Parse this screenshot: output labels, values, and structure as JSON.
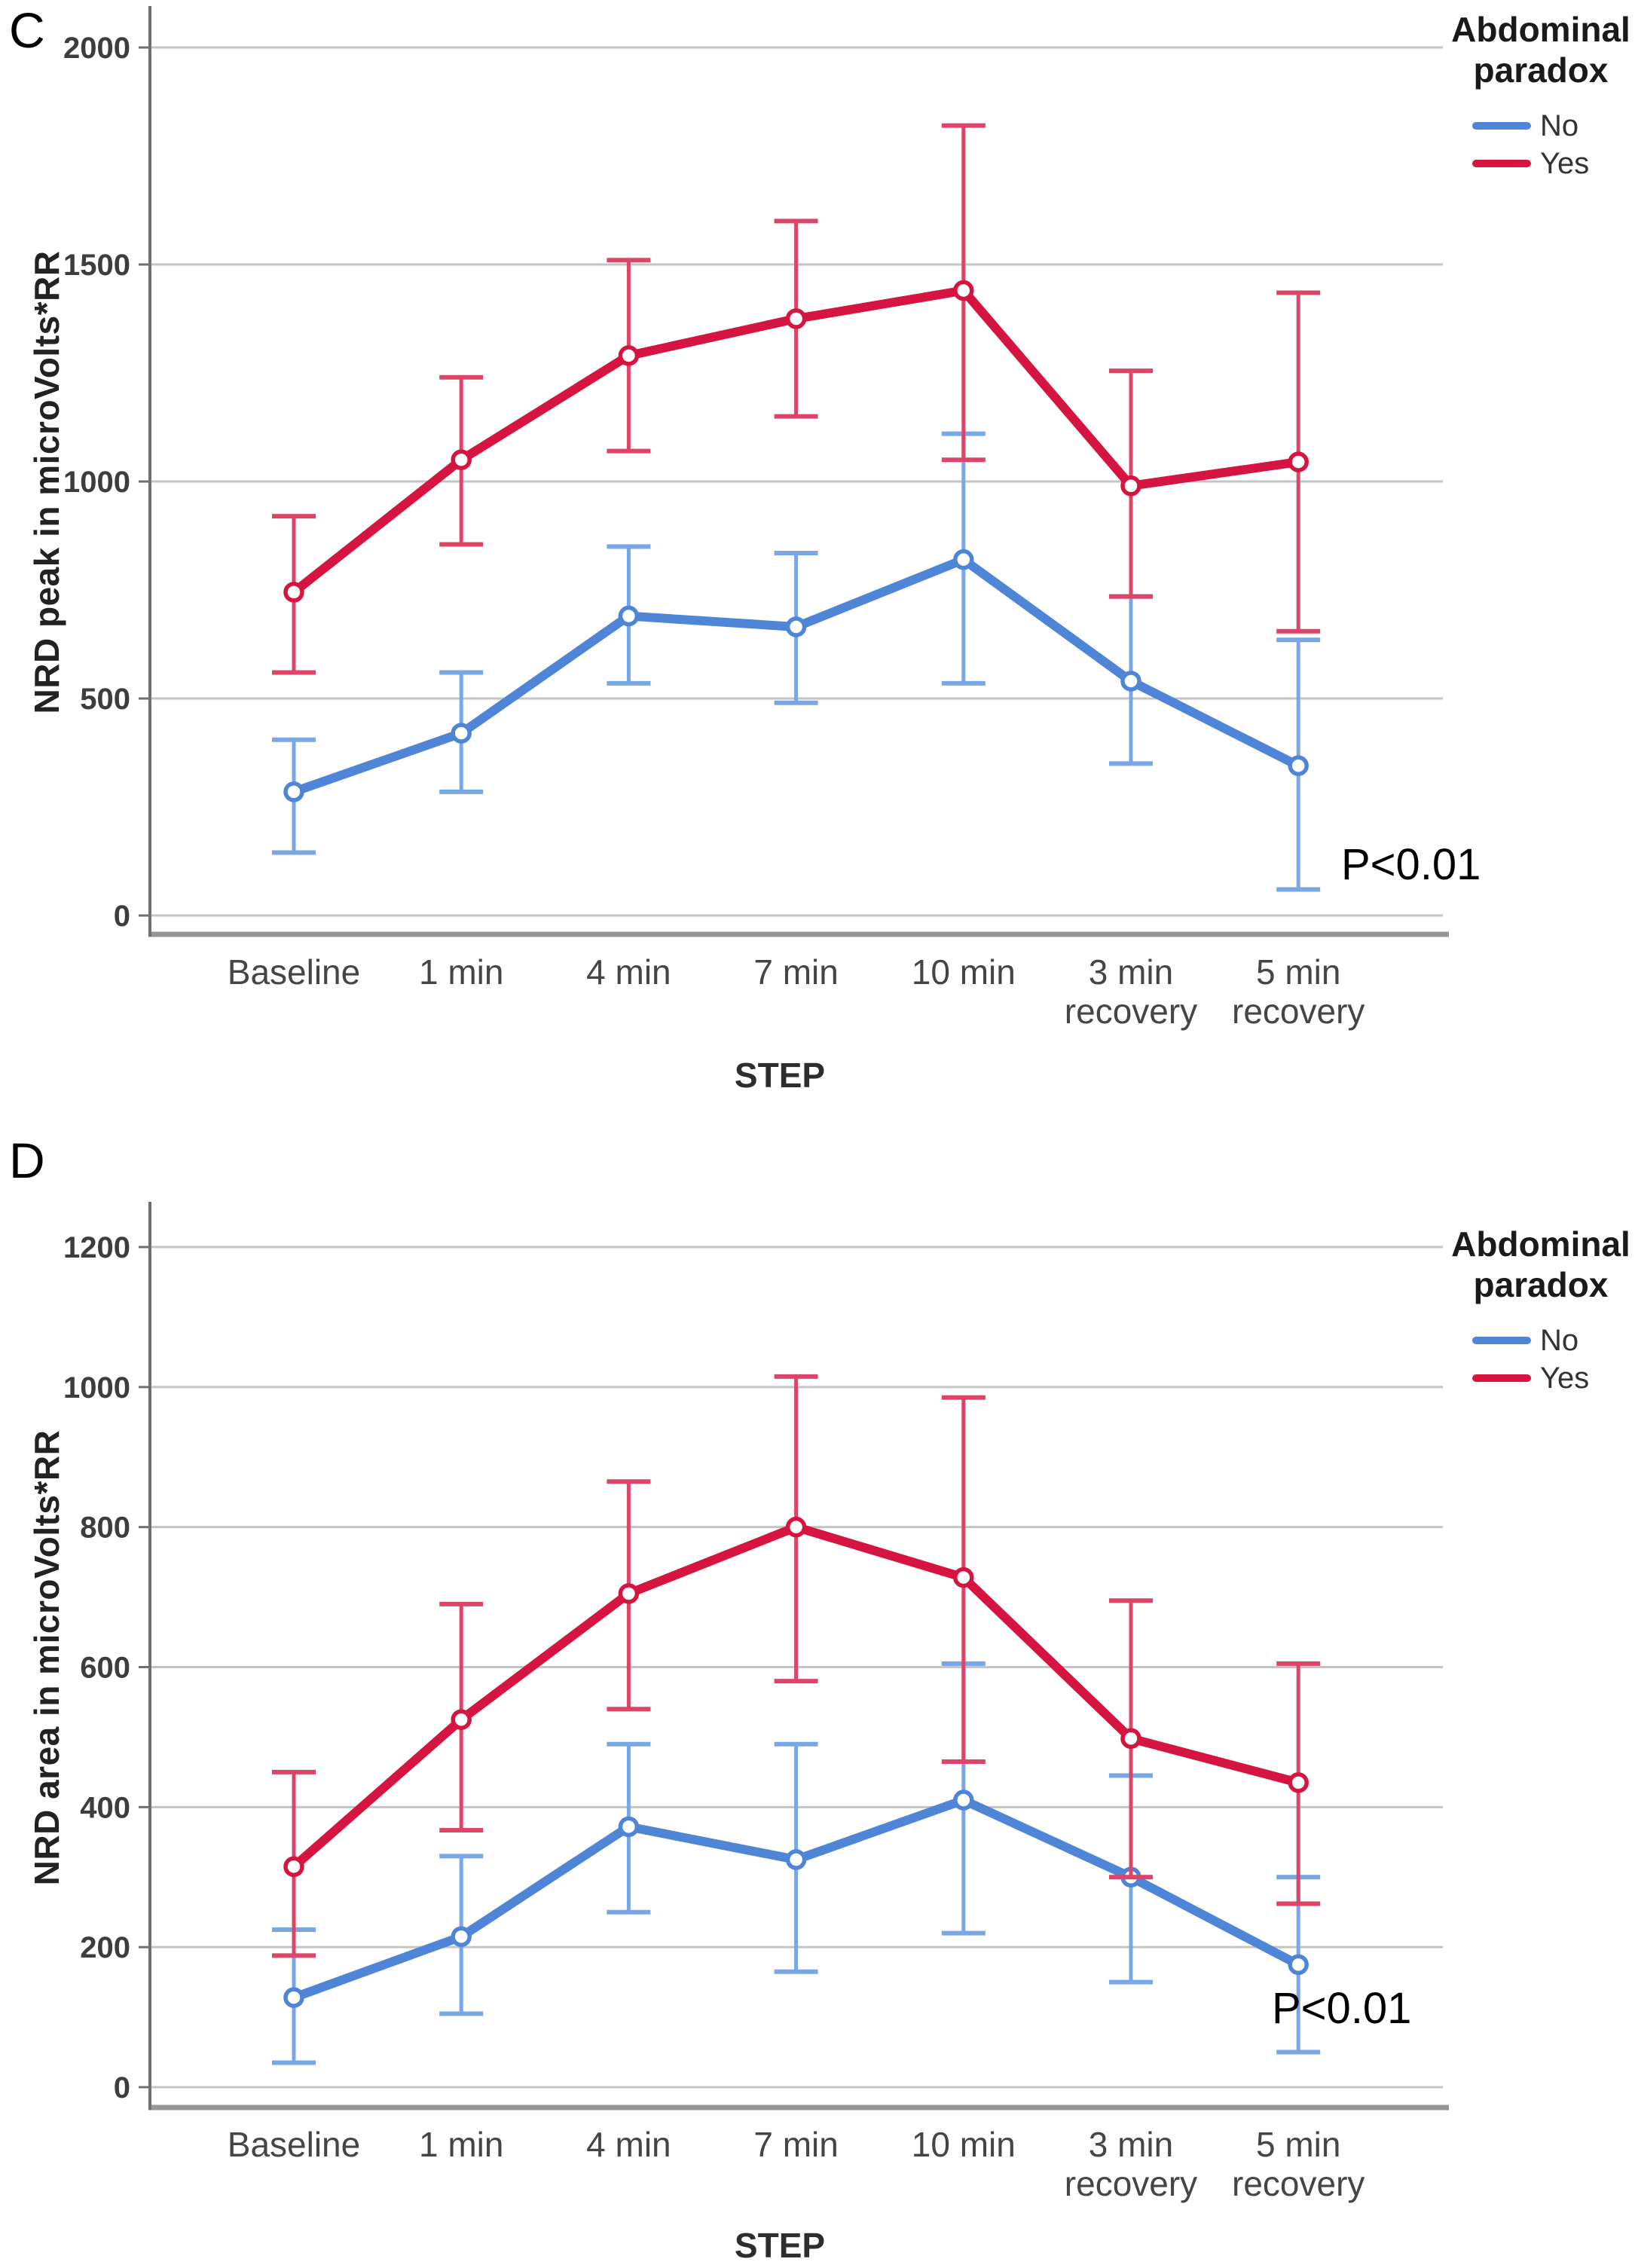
{
  "colors": {
    "no": "#4f85d6",
    "no_error": "#79a7e6",
    "yes": "#d51540",
    "yes_error": "#dc4568",
    "gridline": "#c4c4c4",
    "axis": "#707070",
    "frame": "#969696",
    "tick_text": "#3d3d3d",
    "category_text": "#454545"
  },
  "chart_data": [
    {
      "type": "line",
      "panel_label": "C",
      "ylabel": "NRD peak in microVolts*RR",
      "xlabel": "STEP",
      "annotation": "P<0.01",
      "categories": [
        "Baseline",
        "1 min",
        "4 min",
        "7 min",
        "10 min",
        "3 min recovery",
        "5 min recovery"
      ],
      "ylim": [
        0,
        2000
      ],
      "yticks": [
        0,
        500,
        1000,
        1500,
        2000
      ],
      "grid": true,
      "legend": {
        "title": "Abdominal paradox",
        "position": "top-right"
      },
      "series": [
        {
          "name": "No",
          "color_key": "no",
          "error_color_key": "no_error",
          "values": [
            285,
            420,
            690,
            665,
            820,
            540,
            345
          ],
          "err_low": [
            145,
            285,
            535,
            490,
            535,
            350,
            60
          ],
          "err_high": [
            405,
            560,
            850,
            835,
            1110,
            735,
            635
          ]
        },
        {
          "name": "Yes",
          "color_key": "yes",
          "error_color_key": "yes_error",
          "values": [
            745,
            1050,
            1290,
            1375,
            1440,
            990,
            1045
          ],
          "err_low": [
            560,
            855,
            1070,
            1150,
            1050,
            735,
            655
          ],
          "err_high": [
            920,
            1240,
            1510,
            1600,
            1820,
            1255,
            1435
          ]
        }
      ]
    },
    {
      "type": "line",
      "panel_label": "D",
      "ylabel": "NRD area in microVolts*RR",
      "xlabel": "STEP",
      "annotation": "P<0.01",
      "categories": [
        "Baseline",
        "1 min",
        "4 min",
        "7 min",
        "10 min",
        "3 min recovery",
        "5 min recovery"
      ],
      "ylim": [
        0,
        1200
      ],
      "yticks": [
        0,
        200,
        400,
        600,
        800,
        1000,
        1200
      ],
      "grid": true,
      "legend": {
        "title": "Abdominal paradox",
        "position": "top-right"
      },
      "series": [
        {
          "name": "No",
          "color_key": "no",
          "error_color_key": "no_error",
          "values": [
            128,
            215,
            372,
            325,
            410,
            300,
            175
          ],
          "err_low": [
            35,
            105,
            250,
            165,
            220,
            150,
            50
          ],
          "err_high": [
            225,
            330,
            490,
            490,
            605,
            445,
            300
          ]
        },
        {
          "name": "Yes",
          "color_key": "yes",
          "error_color_key": "yes_error",
          "values": [
            315,
            525,
            705,
            800,
            728,
            498,
            435
          ],
          "err_low": [
            188,
            367,
            540,
            580,
            465,
            300,
            262
          ],
          "err_high": [
            450,
            690,
            865,
            1015,
            985,
            695,
            605
          ]
        }
      ]
    }
  ]
}
